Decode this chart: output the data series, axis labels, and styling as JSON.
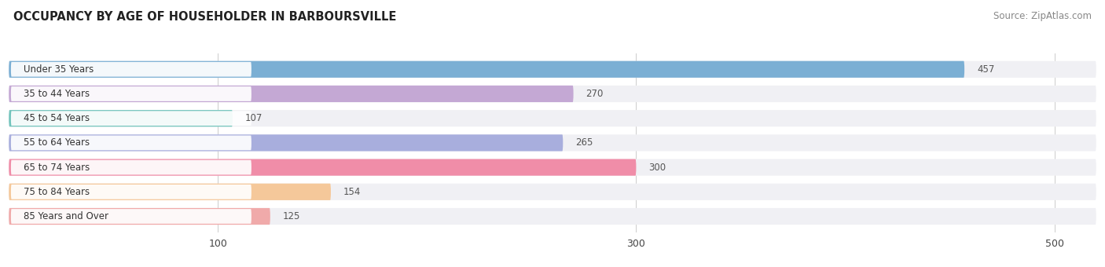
{
  "title": "OCCUPANCY BY AGE OF HOUSEHOLDER IN BARBOURSVILLE",
  "source": "Source: ZipAtlas.com",
  "categories": [
    "Under 35 Years",
    "35 to 44 Years",
    "45 to 54 Years",
    "55 to 64 Years",
    "65 to 74 Years",
    "75 to 84 Years",
    "85 Years and Over"
  ],
  "values": [
    457,
    270,
    107,
    265,
    300,
    154,
    125
  ],
  "bar_colors": [
    "#7BAFD4",
    "#C4A8D4",
    "#72C4BC",
    "#A8AEDD",
    "#F08DA8",
    "#F5C89A",
    "#F0AAAA"
  ],
  "bar_bg_color": "#F0F0F4",
  "label_pill_color": "#FFFFFF",
  "value_color_inside": "#FFFFFF",
  "value_color_outside": "#555555",
  "xlim_max": 520,
  "xticks": [
    100,
    300,
    500
  ],
  "title_fontsize": 10.5,
  "source_fontsize": 8.5,
  "label_fontsize": 8.5,
  "value_fontsize": 8.5,
  "bar_height": 0.68,
  "figsize": [
    14.06,
    3.4
  ],
  "dpi": 100
}
